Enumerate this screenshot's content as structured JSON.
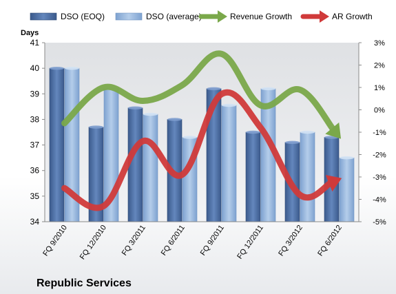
{
  "chart_data": {
    "type": "bar",
    "company": "Republic Services",
    "left_axis_title": "Days",
    "categories": [
      "FQ 9/2010",
      "FQ 12/2010",
      "FQ 3/2011",
      "FQ 6/2011",
      "FQ 9/2011",
      "FQ 12/2011",
      "FQ 3/2012",
      "FQ 6/2012"
    ],
    "ylim_left": [
      34,
      41
    ],
    "left_ticks": [
      "34",
      "35",
      "36",
      "37",
      "38",
      "39",
      "40",
      "41"
    ],
    "ylim_right": [
      -5,
      3
    ],
    "right_ticks": [
      "-5%",
      "-4%",
      "-3%",
      "-2%",
      "-1%",
      "0%",
      "1%",
      "2%",
      "3%"
    ],
    "grid": false,
    "legend_position": "top",
    "series": [
      {
        "name": "DSO (EOQ)",
        "kind": "bar",
        "axis": "left",
        "color": "#4a6b9f",
        "values": [
          40.0,
          37.7,
          38.45,
          38.0,
          39.2,
          37.5,
          37.1,
          37.3
        ]
      },
      {
        "name": "DSO (average)",
        "kind": "bar",
        "axis": "left",
        "color": "#8fb3de",
        "values": [
          40.0,
          39.2,
          38.2,
          37.3,
          38.55,
          39.2,
          37.5,
          36.5
        ]
      },
      {
        "name": "Revenue Growth",
        "kind": "line",
        "axis": "right",
        "color": "#7aa84a",
        "values": [
          -0.6,
          1.0,
          0.4,
          1.1,
          2.5,
          0.2,
          0.9,
          -1.2
        ]
      },
      {
        "name": "AR Growth",
        "kind": "line",
        "axis": "right",
        "color": "#d03a3a",
        "values": [
          -3.5,
          -4.3,
          -1.4,
          -2.9,
          0.7,
          -0.8,
          -3.8,
          -3.1
        ]
      }
    ]
  }
}
